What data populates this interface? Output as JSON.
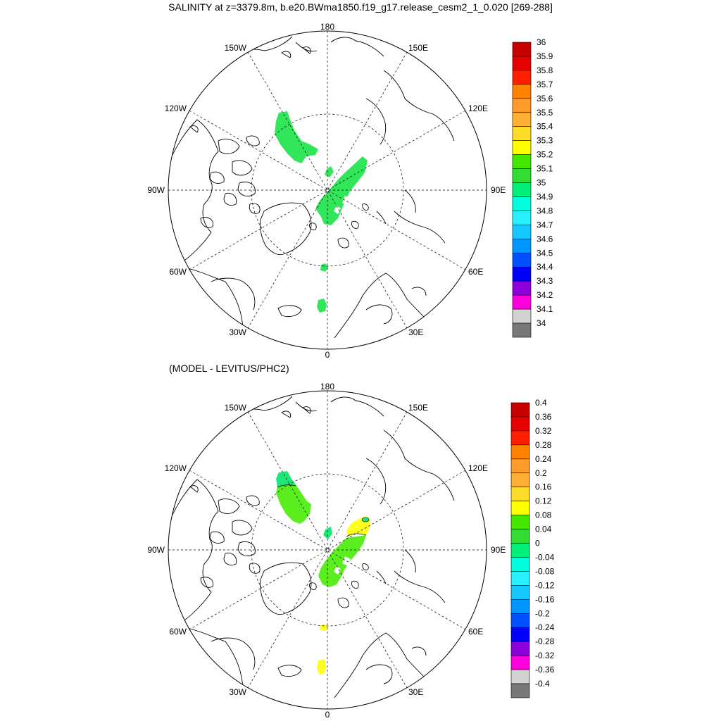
{
  "main_title": "SALINITY at z=3379.8m, b.e20.BWma1850.f19_g17.release_cesm2_1_0.020 [269-288]",
  "diff_title": "(MODEL - LEVITUS/PHC2)",
  "lon_labels": {
    "top": "180",
    "bottom": "0",
    "left": "90W",
    "right": "90E",
    "upper_left_1": "150W",
    "upper_left_2": "120W",
    "upper_right_1": "150E",
    "upper_right_2": "120E",
    "lower_left_1": "60W",
    "lower_left_2": "30W",
    "lower_right_1": "60E",
    "lower_right_2": "30E"
  },
  "panel_top": {
    "colorbar_labels": [
      "36",
      "35.9",
      "35.8",
      "35.7",
      "35.6",
      "35.5",
      "35.4",
      "35.3",
      "35.2",
      "35.1",
      "35",
      "34.9",
      "34.8",
      "34.7",
      "34.6",
      "34.5",
      "34.4",
      "34.3",
      "34.2",
      "34.1",
      "34"
    ],
    "colorbar_colors": [
      "#c80000",
      "#e60000",
      "#ff1e00",
      "#ff8200",
      "#ff9b28",
      "#ffaf32",
      "#ffdc28",
      "#ffff00",
      "#46e600",
      "#32dc32",
      "#00f078",
      "#00ffdc",
      "#28f0ff",
      "#14c8ff",
      "#0096ff",
      "#0050ff",
      "#0000ff",
      "#8c00dc",
      "#ff00dc",
      "#d2d2d2",
      "#787878"
    ]
  },
  "panel_bottom": {
    "colorbar_labels": [
      "0.4",
      "0.36",
      "0.32",
      "0.28",
      "0.24",
      "0.2",
      "0.16",
      "0.12",
      "0.08",
      "0.04",
      "0",
      "-0.04",
      "-0.08",
      "-0.12",
      "-0.16",
      "-0.2",
      "-0.24",
      "-0.28",
      "-0.32",
      "-0.36",
      "-0.4"
    ],
    "colorbar_colors": [
      "#c80000",
      "#e60000",
      "#ff1e00",
      "#ff8200",
      "#ff9b28",
      "#ffaf32",
      "#ffdc28",
      "#ffff00",
      "#46e600",
      "#32dc32",
      "#00f078",
      "#00ffdc",
      "#28f0ff",
      "#14c8ff",
      "#0096ff",
      "#0050ff",
      "#0000ff",
      "#8c00dc",
      "#ff00dc",
      "#d2d2d2",
      "#787878"
    ]
  },
  "fill_colors": {
    "top_region": "#32e65a",
    "bottom_green": "#5aee1e",
    "bottom_cyan_green": "#1ee678",
    "bottom_yellow": "#ffff1e"
  }
}
